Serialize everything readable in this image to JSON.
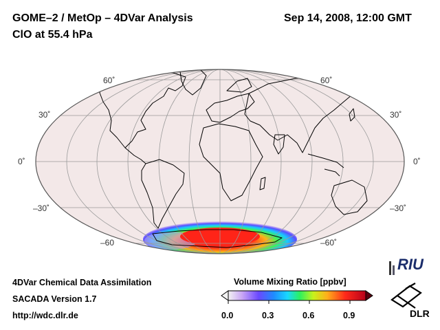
{
  "header": {
    "title_left": "GOME–2 / MetOp – 4DVar Analysis",
    "title_right": "Sep 14, 2008, 12:00 GMT",
    "subtitle": "ClO at 55.4 hPa"
  },
  "map": {
    "projection": "Mollweide",
    "lat_labels_left": [
      "60˚",
      "30˚",
      "0˚",
      "–30˚",
      "–60"
    ],
    "lat_labels_right": [
      "60˚",
      "30˚",
      "0˚",
      "–30˚",
      "–60˚"
    ],
    "field_colors": {
      "background": "#f4e9e9",
      "ocean_outline": "#000000"
    }
  },
  "colorbar": {
    "label": "Volume Mixing Ratio [ppbv]",
    "ticks": [
      "0.0",
      "0.3",
      "0.6",
      "0.9"
    ],
    "range": [
      0.0,
      1.0
    ],
    "colors": [
      "#f2f2f2",
      "#c9a6f5",
      "#6a48ff",
      "#1f8bff",
      "#19d8ff",
      "#2bf15f",
      "#c9f21b",
      "#ffae1a",
      "#ff2a1a",
      "#b8001a"
    ]
  },
  "footer": {
    "line1": "4DVar Chemical Data Assimilation",
    "line2": "SACADA Version 1.7",
    "line3": "http://wdc.dlr.de"
  },
  "logos": {
    "riu": "RIU",
    "dlr": "DLR"
  }
}
